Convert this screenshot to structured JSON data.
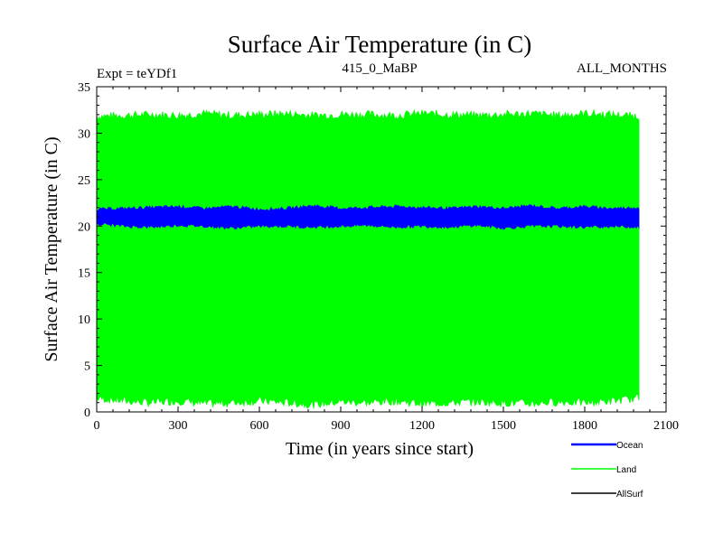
{
  "chart_data": {
    "type": "area",
    "title": "Surface Air Temperature (in C)",
    "subtitle_left": "Expt = teYDf1",
    "subtitle_center": "415_0_MaBP",
    "subtitle_right": "ALL_MONTHS",
    "xlabel": "Time (in years since start)",
    "ylabel": "Surface Air Temperature (in C)",
    "xlim": [
      0,
      2100
    ],
    "ylim": [
      0,
      35
    ],
    "x_ticks": [
      0,
      300,
      600,
      900,
      1200,
      1500,
      1800,
      2100
    ],
    "y_ticks": [
      0,
      5,
      10,
      15,
      20,
      25,
      30,
      35
    ],
    "x_range_data": [
      0,
      2000
    ],
    "legend_placement": "bottom-right",
    "series": [
      {
        "name": "Ocean",
        "color": "#0000ff",
        "band_min": [
          20.3,
          20.0,
          19.9,
          20.1,
          20.0,
          19.8,
          20.0,
          20.0,
          19.9,
          20.0,
          20.1,
          19.9,
          20.0,
          19.9,
          20.1,
          19.8,
          20.0,
          20.0,
          19.9,
          20.0,
          19.9
        ],
        "band_max": [
          21.8,
          21.9,
          22.0,
          22.1,
          21.9,
          22.1,
          21.8,
          21.9,
          22.2,
          21.9,
          22.0,
          22.1,
          22.0,
          21.9,
          22.1,
          21.9,
          22.2,
          21.9,
          22.1,
          21.9,
          22.0
        ]
      },
      {
        "name": "Land",
        "color": "#00ff00",
        "band_min": [
          1.5,
          1.2,
          1.0,
          1.2,
          0.9,
          1.0,
          1.2,
          1.0,
          0.8,
          1.1,
          1.0,
          1.2,
          0.9,
          1.0,
          1.1,
          1.0,
          0.9,
          1.1,
          1.0,
          1.2,
          1.5
        ],
        "band_max": [
          31.8,
          31.9,
          32.0,
          31.9,
          32.1,
          31.9,
          32.0,
          32.1,
          31.9,
          32.0,
          32.0,
          31.9,
          32.1,
          32.0,
          31.9,
          32.0,
          32.1,
          31.9,
          32.1,
          32.0,
          31.8
        ]
      },
      {
        "name": "AllSurf",
        "color": "#000000",
        "band_min": [],
        "band_max": []
      }
    ]
  }
}
